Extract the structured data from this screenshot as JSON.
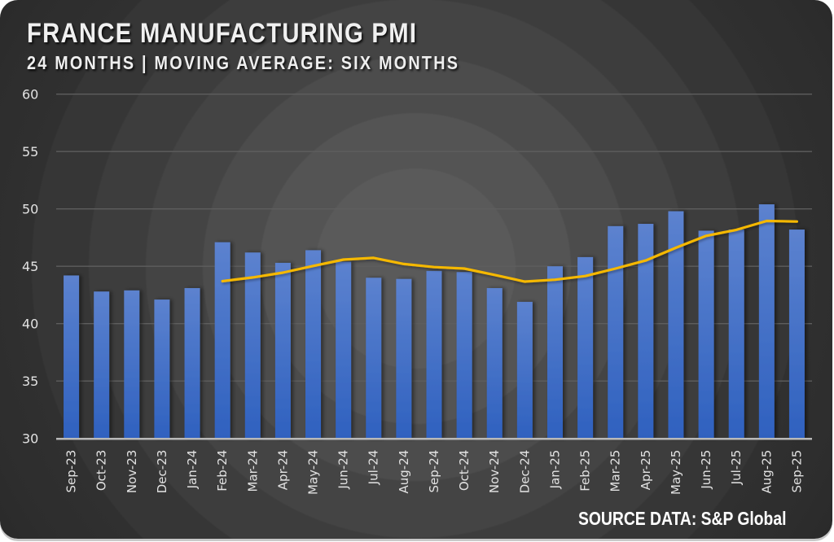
{
  "chart_data": {
    "type": "bar",
    "title": "FRANCE MANUFACTURING PMI",
    "subtitle": "24 MONTHS | MOVING AVERAGE: SIX MONTHS",
    "source": "SOURCE DATA: S&P Global",
    "xlabel": "",
    "ylabel": "",
    "ylim": [
      30,
      60
    ],
    "yticks": [
      30,
      35,
      40,
      45,
      50,
      55,
      60
    ],
    "grid": true,
    "legend": "none",
    "categories": [
      "Sep-23",
      "Oct-23",
      "Nov-23",
      "Dec-23",
      "Jan-24",
      "Feb-24",
      "Mar-24",
      "Apr-24",
      "May-24",
      "Jun-24",
      "Jul-24",
      "Aug-24",
      "Sep-24",
      "Oct-24",
      "Nov-24",
      "Dec-24",
      "Jan-25",
      "Feb-25",
      "Mar-25",
      "Apr-25",
      "May-25",
      "Jun-25",
      "Jul-25",
      "Aug-25",
      "Sep-25"
    ],
    "series": [
      {
        "name": "PMI",
        "type": "bar",
        "color": "#4a74cc",
        "values": [
          44.2,
          42.8,
          42.9,
          42.1,
          43.1,
          47.1,
          46.2,
          45.3,
          46.4,
          45.4,
          44.0,
          43.9,
          44.6,
          44.5,
          43.1,
          41.9,
          45.0,
          45.8,
          48.5,
          48.7,
          49.8,
          48.1,
          48.2,
          50.4,
          48.2
        ]
      },
      {
        "name": "6-Month Moving Average",
        "type": "line",
        "color": "#f5b800",
        "values": [
          null,
          null,
          null,
          null,
          null,
          43.7,
          44.03,
          44.45,
          45.03,
          45.58,
          45.73,
          45.2,
          44.93,
          44.8,
          44.25,
          43.67,
          43.83,
          44.15,
          44.8,
          45.5,
          46.62,
          47.65,
          48.18,
          48.95,
          48.9
        ]
      }
    ]
  }
}
